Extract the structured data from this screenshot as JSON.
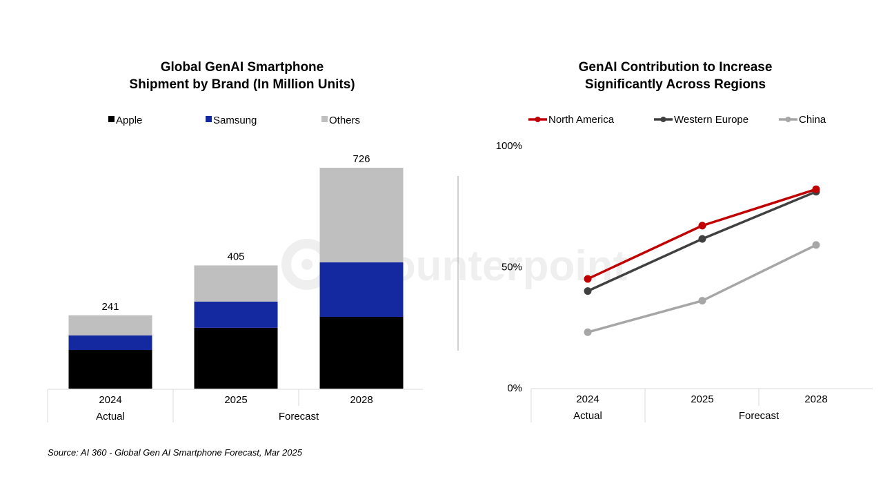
{
  "watermark": "Counterpoint",
  "source": "Source: AI 360 - Global Gen AI Smartphone Forecast, Mar 2025",
  "chart_data": [
    {
      "type": "bar",
      "stacked": true,
      "title": [
        "Global GenAI Smartphone",
        "Shipment by Brand (In Million Units)"
      ],
      "categories": [
        "2024",
        "2025",
        "2028"
      ],
      "groups": [
        {
          "label": "Actual",
          "span": 1
        },
        {
          "label": "Forecast",
          "span": 2
        }
      ],
      "series": [
        {
          "name": "Apple",
          "color": "#000000",
          "values": [
            127,
            200,
            236
          ]
        },
        {
          "name": "Samsung",
          "color": "#1428A0",
          "values": [
            48,
            86,
            179
          ]
        },
        {
          "name": "Others",
          "color": "#BFBFBF",
          "values": [
            66,
            119,
            311
          ]
        }
      ],
      "totals": [
        "241",
        "405",
        "726"
      ],
      "ylim": [
        0,
        726
      ],
      "legend": "top",
      "grid": false
    },
    {
      "type": "line",
      "title": [
        "GenAI Contribution to Increase",
        "Significantly Across Regions"
      ],
      "categories": [
        "2024",
        "2025",
        "2028"
      ],
      "groups": [
        {
          "label": "Actual",
          "span": 1
        },
        {
          "label": "Forecast",
          "span": 2
        }
      ],
      "yticks": [
        "0%",
        "50%",
        "100%"
      ],
      "ylim": [
        0,
        100
      ],
      "series": [
        {
          "name": "North America",
          "color": "#C00000",
          "values": [
            45,
            67,
            82
          ]
        },
        {
          "name": "Western Europe",
          "color": "#404040",
          "values": [
            40,
            61.5,
            81
          ]
        },
        {
          "name": "China",
          "color": "#A6A6A6",
          "values": [
            23,
            36,
            59
          ]
        }
      ],
      "legend": "top",
      "grid": false
    }
  ]
}
